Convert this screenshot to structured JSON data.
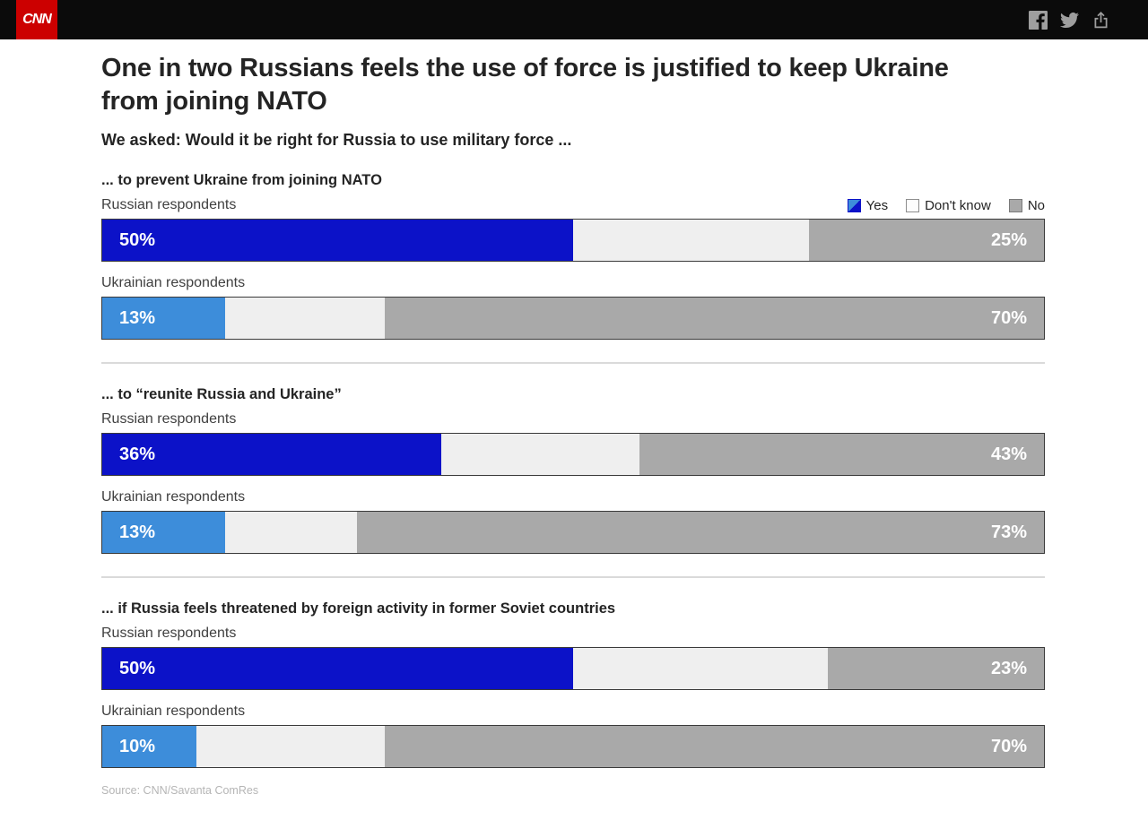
{
  "header": {
    "logo_text": "CNN",
    "social": {
      "facebook_label": "Share on Facebook",
      "twitter_label": "Share on Twitter",
      "share_label": "Share"
    }
  },
  "title": "One in two Russians feels the use of force is justified to keep Ukraine from joining NATO",
  "subtitle": "We asked: Would it be right for Russia to use military force ...",
  "legend": {
    "items": [
      {
        "label": "Yes"
      },
      {
        "label": "Don't know"
      },
      {
        "label": "No"
      }
    ]
  },
  "colors": {
    "yes_russian": "#0c12c8",
    "yes_ukrainian": "#3d8dda",
    "dont_know": "#efefef",
    "no": "#a9a9a9",
    "cnn_red": "#cc0000",
    "header_bg": "#0b0b0b",
    "divider": "#dadada"
  },
  "sections": [
    {
      "question": "... to prevent Ukraine from joining NATO",
      "rows": [
        {
          "group": "Russian respondents",
          "yes": 50,
          "dk": 25,
          "no": 25,
          "yes_label": "50%",
          "no_label": "25%"
        },
        {
          "group": "Ukrainian respondents",
          "yes": 13,
          "dk": 17,
          "no": 70,
          "yes_label": "13%",
          "no_label": "70%"
        }
      ]
    },
    {
      "question": "... to “reunite Russia and Ukraine”",
      "rows": [
        {
          "group": "Russian respondents",
          "yes": 36,
          "dk": 21,
          "no": 43,
          "yes_label": "36%",
          "no_label": "43%"
        },
        {
          "group": "Ukrainian respondents",
          "yes": 13,
          "dk": 14,
          "no": 73,
          "yes_label": "13%",
          "no_label": "73%"
        }
      ]
    },
    {
      "question": "... if Russia feels threatened by foreign activity in former Soviet countries",
      "rows": [
        {
          "group": "Russian respondents",
          "yes": 50,
          "dk": 27,
          "no": 23,
          "yes_label": "50%",
          "no_label": "23%"
        },
        {
          "group": "Ukrainian respondents",
          "yes": 10,
          "dk": 20,
          "no": 70,
          "yes_label": "10%",
          "no_label": "70%"
        }
      ]
    }
  ],
  "source": "Source: CNN/Savanta ComRes",
  "chart_data": [
    {
      "type": "bar",
      "variant": "horizontal-stacked-100",
      "title": "... to prevent Ukraine from joining NATO",
      "categories": [
        "Russian respondents",
        "Ukrainian respondents"
      ],
      "series": [
        {
          "name": "Yes",
          "values": [
            50,
            13
          ]
        },
        {
          "name": "Don't know",
          "values": [
            25,
            17
          ]
        },
        {
          "name": "No",
          "values": [
            25,
            70
          ]
        }
      ],
      "unit": "%",
      "xlim": [
        0,
        100
      ],
      "legend_position": "top-right",
      "grid": false
    },
    {
      "type": "bar",
      "variant": "horizontal-stacked-100",
      "title": "... to “reunite Russia and Ukraine”",
      "categories": [
        "Russian respondents",
        "Ukrainian respondents"
      ],
      "series": [
        {
          "name": "Yes",
          "values": [
            36,
            13
          ]
        },
        {
          "name": "Don't know",
          "values": [
            21,
            14
          ]
        },
        {
          "name": "No",
          "values": [
            43,
            73
          ]
        }
      ],
      "unit": "%",
      "xlim": [
        0,
        100
      ],
      "grid": false
    },
    {
      "type": "bar",
      "variant": "horizontal-stacked-100",
      "title": "... if Russia feels threatened by foreign activity in former Soviet countries",
      "categories": [
        "Russian respondents",
        "Ukrainian respondents"
      ],
      "series": [
        {
          "name": "Yes",
          "values": [
            50,
            10
          ]
        },
        {
          "name": "Don't know",
          "values": [
            27,
            20
          ]
        },
        {
          "name": "No",
          "values": [
            23,
            70
          ]
        }
      ],
      "unit": "%",
      "xlim": [
        0,
        100
      ],
      "grid": false
    }
  ]
}
